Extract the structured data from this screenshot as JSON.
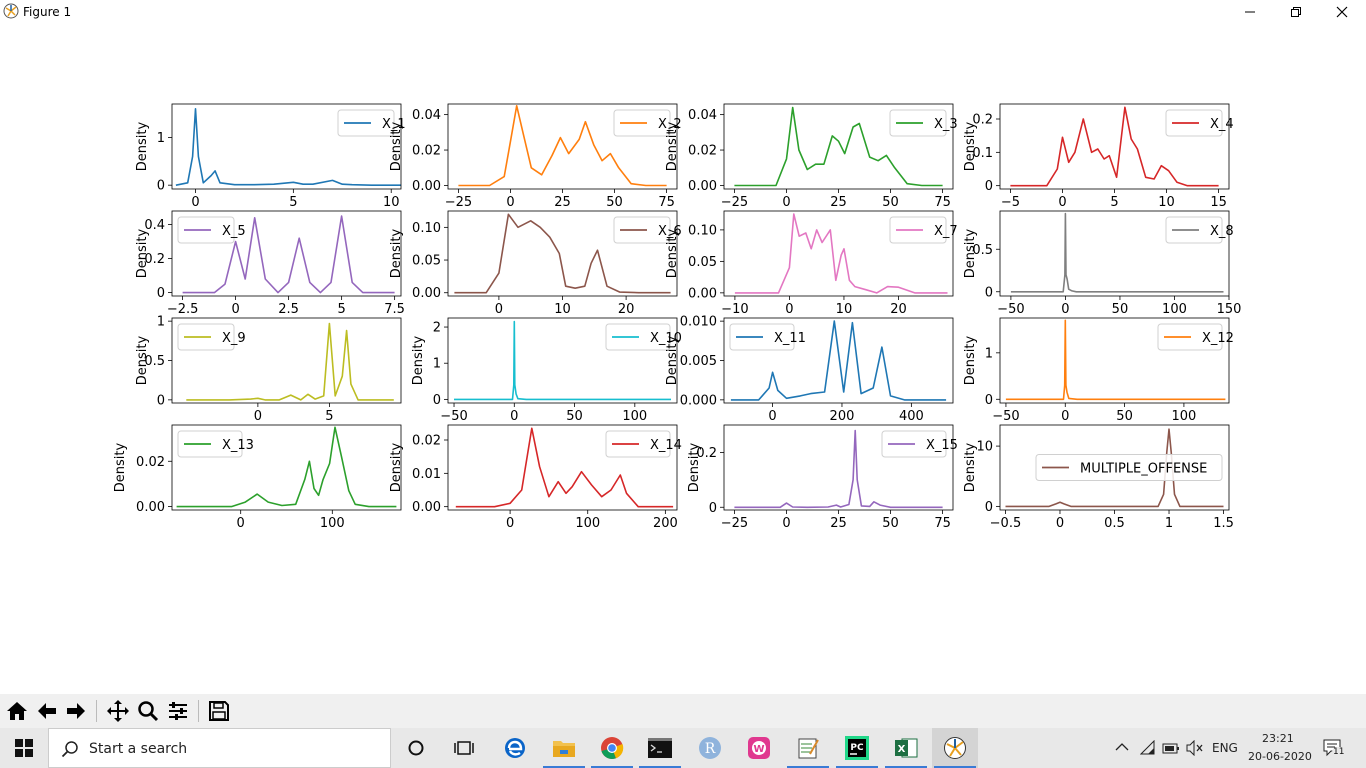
{
  "window": {
    "title": "Figure 1"
  },
  "colors": {
    "X_1": "#1f77b4",
    "X_2": "#ff7f0e",
    "X_3": "#2ca02c",
    "X_4": "#d62728",
    "X_5": "#9467bd",
    "X_6": "#8c564b",
    "X_7": "#e377c2",
    "X_8": "#7f7f7f",
    "X_9": "#bcbd22",
    "X_10": "#17becf",
    "X_11": "#1f77b4",
    "X_12": "#ff7f0e",
    "X_13": "#2ca02c",
    "X_14": "#d62728",
    "X_15": "#9467bd",
    "MULTIPLE_OFFENSE": "#8c564b"
  },
  "chart_data": [
    {
      "type": "line",
      "ylabel": "Density",
      "legend": "X_1",
      "legend_loc": "upper right",
      "xticks": [
        0,
        5,
        10
      ],
      "yticks": [
        0,
        1
      ],
      "xlim": [
        -1.2,
        10.5
      ],
      "ylim": [
        -0.08,
        1.7
      ],
      "x": [
        -1.0,
        -0.4,
        -0.15,
        0.0,
        0.15,
        0.4,
        0.8,
        1.0,
        1.25,
        2.0,
        3.0,
        4.0,
        5.0,
        5.5,
        6.0,
        7.0,
        7.5,
        8.0,
        9.0,
        10.5
      ],
      "y": [
        0.0,
        0.05,
        0.6,
        1.6,
        0.6,
        0.05,
        0.2,
        0.3,
        0.05,
        0.01,
        0.01,
        0.02,
        0.06,
        0.02,
        0.02,
        0.1,
        0.02,
        0.01,
        0.0,
        0.0
      ]
    },
    {
      "type": "line",
      "ylabel": "Density",
      "legend": "X_2",
      "legend_loc": "upper right",
      "xticks": [
        -25,
        0,
        25,
        50,
        75
      ],
      "yticks": [
        0.0,
        0.02,
        0.04
      ],
      "ytick_labels": [
        "0.00",
        "0.02",
        "0.04"
      ],
      "xlim": [
        -30,
        80
      ],
      "ylim": [
        -0.002,
        0.046
      ],
      "x": [
        -25,
        -10,
        -3,
        0,
        3,
        6,
        10,
        15,
        20,
        24,
        28,
        33,
        36,
        40,
        44,
        48,
        52,
        58,
        65,
        75
      ],
      "y": [
        0.0,
        0.0,
        0.005,
        0.025,
        0.045,
        0.03,
        0.01,
        0.006,
        0.017,
        0.027,
        0.018,
        0.026,
        0.036,
        0.023,
        0.014,
        0.018,
        0.01,
        0.001,
        0.0,
        0.0
      ]
    },
    {
      "type": "line",
      "ylabel": "Density",
      "legend": "X_3",
      "legend_loc": "upper right",
      "xticks": [
        -25,
        0,
        25,
        50,
        75
      ],
      "yticks": [
        0.0,
        0.02,
        0.04
      ],
      "ytick_labels": [
        "0.00",
        "0.02",
        "0.04"
      ],
      "xlim": [
        -30,
        80
      ],
      "ylim": [
        -0.002,
        0.046
      ],
      "x": [
        -25,
        -5,
        0,
        3,
        6,
        10,
        14,
        18,
        22,
        25,
        28,
        32,
        35,
        40,
        44,
        48,
        52,
        58,
        65,
        75
      ],
      "y": [
        0.0,
        0.0,
        0.015,
        0.044,
        0.02,
        0.009,
        0.012,
        0.012,
        0.028,
        0.025,
        0.018,
        0.033,
        0.035,
        0.016,
        0.014,
        0.017,
        0.01,
        0.001,
        0.0,
        0.0
      ]
    },
    {
      "type": "line",
      "ylabel": "Density",
      "legend": "X_4",
      "legend_loc": "upper right",
      "xticks": [
        -5,
        0,
        5,
        10,
        15
      ],
      "yticks": [
        0.0,
        0.1,
        0.2
      ],
      "xlim": [
        -6,
        16
      ],
      "ylim": [
        -0.01,
        0.245
      ],
      "x": [
        -5,
        -1.5,
        -0.5,
        0,
        0.6,
        1.2,
        2.0,
        2.8,
        3.4,
        4.0,
        4.5,
        5.2,
        6.0,
        6.6,
        7.2,
        8.0,
        8.8,
        9.5,
        10.2,
        11.0,
        12,
        15
      ],
      "y": [
        0.0,
        0.0,
        0.05,
        0.145,
        0.07,
        0.1,
        0.2,
        0.1,
        0.11,
        0.08,
        0.09,
        0.025,
        0.235,
        0.14,
        0.11,
        0.025,
        0.02,
        0.06,
        0.045,
        0.01,
        0.0,
        0.0
      ]
    },
    {
      "type": "line",
      "ylabel": "Density",
      "legend": "X_5",
      "legend_loc": "upper left",
      "xticks": [
        -2.5,
        0.0,
        2.5,
        5.0,
        7.5
      ],
      "yticks": [
        0.0,
        0.2,
        0.4
      ],
      "xlim": [
        -3,
        7.8
      ],
      "ylim": [
        -0.02,
        0.48
      ],
      "x": [
        -2.5,
        -1.0,
        -0.5,
        0,
        0.45,
        0.9,
        1.4,
        2.0,
        2.5,
        3.0,
        3.5,
        4.0,
        4.5,
        5.0,
        5.5,
        6.0,
        7.5
      ],
      "y": [
        0.0,
        0.0,
        0.05,
        0.3,
        0.08,
        0.44,
        0.08,
        0.0,
        0.06,
        0.32,
        0.06,
        0.0,
        0.06,
        0.45,
        0.06,
        0.0,
        0.0
      ]
    },
    {
      "type": "line",
      "ylabel": "Density",
      "legend": "X_6",
      "legend_loc": "upper right",
      "xticks": [
        0,
        10,
        20
      ],
      "yticks": [
        0.0,
        0.05,
        0.1
      ],
      "ytick_labels": [
        "0.00",
        "0.05",
        "0.10"
      ],
      "xlim": [
        -8,
        28
      ],
      "ylim": [
        -0.005,
        0.125
      ],
      "x": [
        -7,
        -2,
        0,
        1.5,
        3,
        5,
        6.5,
        8,
        9.5,
        10.5,
        12,
        13.5,
        14.5,
        15.5,
        17,
        19,
        22,
        27
      ],
      "y": [
        0.0,
        0.0,
        0.03,
        0.12,
        0.1,
        0.11,
        0.1,
        0.085,
        0.06,
        0.01,
        0.007,
        0.01,
        0.045,
        0.065,
        0.01,
        0.001,
        0.0,
        0.0
      ]
    },
    {
      "type": "line",
      "ylabel": "Density",
      "legend": "X_7",
      "legend_loc": "upper right",
      "xticks": [
        -10,
        0,
        10,
        20
      ],
      "yticks": [
        0.0,
        0.05,
        0.1
      ],
      "ytick_labels": [
        "0.00",
        "0.05",
        "0.10"
      ],
      "xlim": [
        -12,
        30
      ],
      "ylim": [
        -0.005,
        0.13
      ],
      "x": [
        -10,
        -2,
        0,
        0.8,
        1.8,
        3,
        4,
        5,
        6,
        7.5,
        8.5,
        9.5,
        10,
        11,
        12,
        14,
        16,
        18,
        20,
        23,
        29
      ],
      "y": [
        0.0,
        0.0,
        0.04,
        0.125,
        0.09,
        0.095,
        0.07,
        0.1,
        0.08,
        0.1,
        0.02,
        0.06,
        0.07,
        0.02,
        0.01,
        0.005,
        0.0,
        0.01,
        0.009,
        0.0,
        0.0
      ]
    },
    {
      "type": "line",
      "ylabel": "Density",
      "legend": "X_8",
      "legend_loc": "upper right",
      "xticks": [
        -50,
        0,
        50,
        100,
        150
      ],
      "yticks": [
        0.0,
        0.5
      ],
      "xlim": [
        -60,
        150
      ],
      "ylim": [
        -0.05,
        0.95
      ],
      "x": [
        -50,
        -2,
        -0.5,
        0,
        0.5,
        1.5,
        3,
        6,
        10,
        20,
        60,
        145
      ],
      "y": [
        0.0,
        0.0,
        0.2,
        0.92,
        0.2,
        0.15,
        0.03,
        0.01,
        0.0,
        0.0,
        0.0,
        0.0
      ]
    },
    {
      "type": "line",
      "ylabel": "Density",
      "legend": "X_9",
      "legend_loc": "upper left",
      "xticks": [
        0,
        5
      ],
      "yticks": [
        0.0,
        0.5,
        1.0
      ],
      "xlim": [
        -6,
        10
      ],
      "ylim": [
        -0.04,
        1.04
      ],
      "x": [
        -5,
        -2,
        -0.5,
        0,
        0.5,
        1.5,
        2.3,
        3.0,
        3.5,
        4.0,
        4.6,
        5.0,
        5.4,
        5.9,
        6.2,
        6.5,
        7.0,
        8.0,
        9.5
      ],
      "y": [
        0.0,
        0.0,
        0.01,
        0.02,
        0.0,
        0.0,
        0.06,
        0.0,
        0.07,
        0.01,
        0.05,
        0.97,
        0.05,
        0.3,
        0.88,
        0.2,
        0.0,
        0.0,
        0.0
      ]
    },
    {
      "type": "line",
      "ylabel": "Density",
      "legend": "X_10",
      "legend_loc": "upper right",
      "xticks": [
        -50,
        0,
        50,
        100
      ],
      "yticks": [
        0,
        1,
        2
      ],
      "xlim": [
        -55,
        135
      ],
      "ylim": [
        -0.1,
        2.25
      ],
      "x": [
        -50,
        -1.5,
        -0.4,
        0,
        0.4,
        1.5,
        3,
        10,
        60,
        130
      ],
      "y": [
        0.0,
        0.0,
        0.4,
        2.15,
        0.4,
        0.15,
        0.02,
        0.0,
        0.0,
        0.0
      ]
    },
    {
      "type": "line",
      "ylabel": "Density",
      "legend": "X_11",
      "legend_loc": "upper left",
      "xticks": [
        0,
        200,
        400
      ],
      "yticks": [
        0.0,
        0.005,
        0.01
      ],
      "ytick_labels": [
        "0.000",
        "0.005",
        "0.010"
      ],
      "xlim": [
        -140,
        520
      ],
      "ylim": [
        -0.0004,
        0.0104
      ],
      "x": [
        -120,
        -40,
        -10,
        0,
        15,
        40,
        80,
        110,
        150,
        178,
        205,
        230,
        255,
        290,
        315,
        340,
        380,
        500
      ],
      "y": [
        0.0,
        0.0,
        0.0015,
        0.0035,
        0.0012,
        0.0002,
        0.0005,
        0.0008,
        0.001,
        0.01,
        0.001,
        0.0098,
        0.0008,
        0.0015,
        0.0067,
        0.0005,
        0.0,
        0.0
      ]
    },
    {
      "type": "line",
      "ylabel": "Density",
      "legend": "X_12",
      "legend_loc": "upper right",
      "xticks": [
        -50,
        0,
        50,
        100
      ],
      "yticks": [
        0,
        1
      ],
      "xlim": [
        -55,
        138
      ],
      "ylim": [
        -0.08,
        1.75
      ],
      "x": [
        -50,
        -1.5,
        -0.5,
        0,
        0.5,
        1.5,
        3,
        10,
        60,
        135
      ],
      "y": [
        0.0,
        0.0,
        0.3,
        1.7,
        0.3,
        0.15,
        0.02,
        0.0,
        0.0,
        0.0
      ]
    },
    {
      "type": "line",
      "ylabel": "Density",
      "legend": "X_13",
      "legend_loc": "upper left",
      "xticks": [
        0,
        100
      ],
      "yticks": [
        0.0,
        0.02
      ],
      "ytick_labels": [
        "0.00",
        "0.02"
      ],
      "xlim": [
        -75,
        175
      ],
      "ylim": [
        -0.0015,
        0.036
      ],
      "x": [
        -70,
        -10,
        5,
        18,
        30,
        45,
        60,
        70,
        75,
        80,
        85,
        90,
        97,
        103,
        110,
        118,
        125,
        140,
        170
      ],
      "y": [
        0.0,
        0.0,
        0.002,
        0.0055,
        0.002,
        0.0005,
        0.001,
        0.012,
        0.02,
        0.008,
        0.005,
        0.012,
        0.019,
        0.035,
        0.022,
        0.007,
        0.001,
        0.0,
        0.0
      ]
    },
    {
      "type": "line",
      "ylabel": "Density",
      "legend": "X_14",
      "legend_loc": "upper right",
      "xticks": [
        0,
        100,
        200
      ],
      "yticks": [
        0.0,
        0.01,
        0.02
      ],
      "ytick_labels": [
        "0.00",
        "0.01",
        "0.02"
      ],
      "xlim": [
        -80,
        215
      ],
      "ylim": [
        -0.001,
        0.0245
      ],
      "x": [
        -70,
        -20,
        0,
        15,
        28,
        38,
        50,
        62,
        72,
        80,
        92,
        105,
        118,
        130,
        142,
        150,
        165,
        210
      ],
      "y": [
        0.0,
        0.0,
        0.001,
        0.005,
        0.0235,
        0.012,
        0.003,
        0.0075,
        0.004,
        0.006,
        0.0105,
        0.0065,
        0.003,
        0.005,
        0.0095,
        0.004,
        0.0,
        0.0
      ]
    },
    {
      "type": "line",
      "ylabel": "Density",
      "legend": "X_15",
      "legend_loc": "upper right",
      "xticks": [
        -25,
        0,
        25,
        50,
        75
      ],
      "yticks": [
        0.0,
        0.2
      ],
      "xlim": [
        -30,
        80
      ],
      "ylim": [
        -0.01,
        0.3
      ],
      "x": [
        -25,
        -3,
        0,
        3,
        10,
        20,
        24,
        26,
        30,
        32,
        33,
        34,
        36,
        40,
        42,
        45,
        50,
        75
      ],
      "y": [
        0.0,
        0.0,
        0.015,
        0.001,
        0.0,
        0.001,
        0.008,
        0.001,
        0.01,
        0.1,
        0.28,
        0.1,
        0.005,
        0.003,
        0.02,
        0.008,
        0.0,
        0.0
      ]
    },
    {
      "type": "line",
      "ylabel": "Density",
      "legend": "MULTIPLE_OFFENSE",
      "legend_loc": "center right",
      "xticks": [
        -0.5,
        0.0,
        0.5,
        1.0,
        1.5
      ],
      "yticks": [
        0,
        10
      ],
      "xlim": [
        -0.55,
        1.55
      ],
      "ylim": [
        -0.6,
        13.5
      ],
      "x": [
        -0.5,
        -0.1,
        -0.04,
        0.0,
        0.04,
        0.1,
        0.5,
        0.9,
        0.95,
        0.98,
        1.0,
        1.02,
        1.05,
        1.1,
        1.5
      ],
      "y": [
        0.0,
        0.0,
        0.4,
        0.7,
        0.4,
        0.0,
        0.0,
        0.0,
        2.0,
        9.0,
        12.8,
        9.0,
        2.0,
        0.0,
        0.0
      ]
    }
  ],
  "toolbar": {
    "home": "home-icon",
    "back": "back-arrow-icon",
    "forward": "forward-arrow-icon",
    "pan": "pan-icon",
    "zoom": "zoom-icon",
    "configure": "configure-icon",
    "save": "save-icon"
  },
  "taskbar": {
    "search_placeholder": "Start a search",
    "language": "ENG",
    "time": "23:21",
    "date": "20-06-2020",
    "notifications": "11"
  }
}
